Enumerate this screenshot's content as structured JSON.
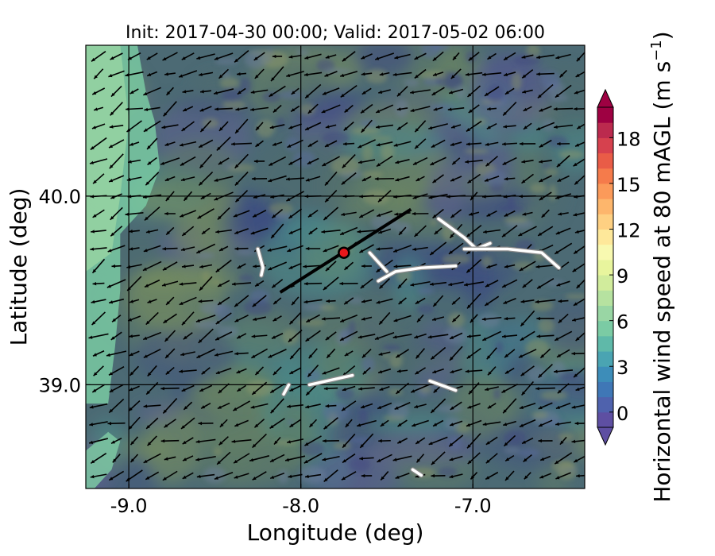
{
  "chart_data": {
    "type": "heatmap",
    "title": "Init: 2017-04-30 00:00; Valid: 2017-05-02 06:00",
    "xlabel": "Longitude (deg)",
    "ylabel": "Latitude (deg)",
    "xlim": [
      -9.25,
      -6.35
    ],
    "ylim": [
      38.45,
      40.8
    ],
    "xticks": [
      -9.0,
      -8.0,
      -7.0
    ],
    "xtick_labels": [
      "-9.0",
      "-8.0",
      "-7.0"
    ],
    "yticks": [
      39.0,
      40.0
    ],
    "ytick_labels": [
      "39.0",
      "40.0"
    ],
    "grid": true,
    "colorbar": {
      "label": "Horizontal wind speed at 80 mAGL",
      "label_units": "(m s",
      "label_exp": "−1",
      "label_close": ")",
      "min": -1,
      "max": 20,
      "ticks": [
        0,
        3,
        6,
        9,
        12,
        15,
        18
      ],
      "tick_labels": [
        "0",
        "3",
        "6",
        "9",
        "12",
        "15",
        "18"
      ],
      "extend": "both",
      "colors": [
        "#5e4fa2",
        "#4f62ad",
        "#3f77b6",
        "#3d8db9",
        "#4aa4b2",
        "#5fb9a9",
        "#7bcba4",
        "#99d6a4",
        "#b6e2a0",
        "#d1ec9c",
        "#e8f59d",
        "#f8f9b0",
        "#fee89a",
        "#fed082",
        "#fdb66c",
        "#fb9a5a",
        "#f57b4b",
        "#e95c47",
        "#d6414e",
        "#bb2a4e",
        "#9e0142"
      ]
    },
    "marker": {
      "lon": -7.75,
      "lat": 39.7,
      "color": "#e8181b"
    },
    "transect": {
      "start": [
        -8.12,
        39.49
      ],
      "end": [
        -7.36,
        39.93
      ]
    },
    "wind_field": "southwest-directed vectors (~2–6 m/s) over most of domain",
    "speed_field_note": "mostly 0–5 m/s; higher (6–8 m/s) along western coastal strip near -9.2 to -8.9"
  }
}
